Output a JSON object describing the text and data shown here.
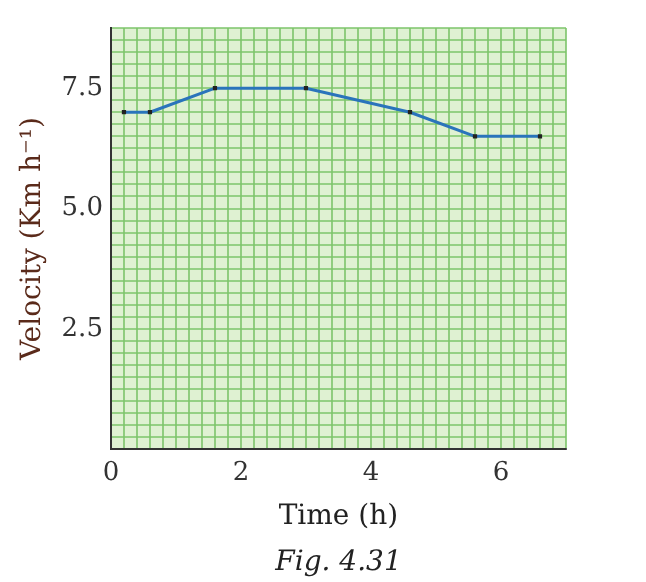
{
  "chart_data": {
    "type": "line",
    "xlabel": "Time (h)",
    "ylabel": "Velocity (Km h⁻¹)",
    "annotations": [
      "Fig. 4.31"
    ],
    "x": [
      0.2,
      0.6,
      1.6,
      3.0,
      4.6,
      5.6,
      6.6
    ],
    "series": [
      {
        "color": "#2a74bb",
        "values": [
          7,
          7,
          7.5,
          7.5,
          7,
          6.5,
          6.5
        ]
      }
    ],
    "xlim": [
      0,
      7
    ],
    "ylim": [
      0,
      8.75
    ],
    "xticks": [
      0,
      {
        "value": 0.2,
        "label": null
      },
      {
        "value": 0.4,
        "label": null
      },
      {
        "value": 0.6,
        "label": null
      },
      {
        "value": 0.8,
        "label": null
      },
      {
        "value": 1,
        "label": null
      },
      {
        "value": 1.2,
        "label": null
      },
      {
        "value": 1.4,
        "label": null
      },
      {
        "value": 1.6,
        "label": null
      },
      {
        "value": 1.8,
        "label": null
      },
      2,
      {
        "value": 2.2,
        "label": null
      },
      {
        "value": 2.4,
        "label": null
      },
      {
        "value": 2.6,
        "label": null
      },
      {
        "value": 2.8,
        "label": null
      },
      {
        "value": 3,
        "label": null
      },
      {
        "value": 3.2,
        "label": null
      },
      {
        "value": 3.4,
        "label": null
      },
      {
        "value": 3.6,
        "label": null
      },
      {
        "value": 3.8,
        "label": null
      },
      4,
      {
        "value": 4.2,
        "label": null
      },
      {
        "value": 4.4,
        "label": null
      },
      {
        "value": 4.6,
        "label": null
      },
      {
        "value": 4.8,
        "label": null
      },
      {
        "value": 5,
        "label": null
      },
      {
        "value": 5.2,
        "label": null
      },
      {
        "value": 5.4,
        "label": null
      },
      {
        "value": 5.6,
        "label": null
      },
      {
        "value": 5.8,
        "label": null
      },
      6,
      {
        "value": 6.2,
        "label": null
      },
      {
        "value": 6.4,
        "label": null
      },
      {
        "value": 6.6,
        "label": null
      },
      {
        "value": 6.8,
        "label": null
      },
      {
        "value": 7,
        "label": null
      }
    ],
    "yticks": [
      {
        "value": 0,
        "label": null
      },
      {
        "value": 0.25,
        "label": null
      },
      {
        "value": 0.5,
        "label": null
      },
      {
        "value": 0.75,
        "label": null
      },
      {
        "value": 1,
        "label": null
      },
      {
        "value": 1.25,
        "label": null
      },
      {
        "value": 1.5,
        "label": null
      },
      {
        "value": 1.75,
        "label": null
      },
      {
        "value": 2,
        "label": null
      },
      {
        "value": 2.25,
        "label": null
      },
      2.5,
      {
        "value": 2.75,
        "label": null
      },
      {
        "value": 3,
        "label": null
      },
      {
        "value": 3.25,
        "label": null
      },
      {
        "value": 3.5,
        "label": null
      },
      {
        "value": 3.75,
        "label": null
      },
      {
        "value": 4,
        "label": null
      },
      {
        "value": 4.25,
        "label": null
      },
      {
        "value": 4.5,
        "label": null
      },
      {
        "value": 4.75,
        "label": null
      },
      {
        "value": 5,
        "label": "5.0"
      },
      {
        "value": 5.25,
        "label": null
      },
      {
        "value": 5.5,
        "label": null
      },
      {
        "value": 5.75,
        "label": null
      },
      {
        "value": 6,
        "label": null
      },
      {
        "value": 6.25,
        "label": null
      },
      {
        "value": 6.5,
        "label": null
      },
      {
        "value": 6.75,
        "label": null
      },
      {
        "value": 7,
        "label": null
      },
      {
        "value": 7.25,
        "label": null
      },
      7.5,
      {
        "value": 7.75,
        "label": null
      },
      {
        "value": 8,
        "label": null
      },
      {
        "value": 8.25,
        "label": null
      },
      {
        "value": 8.5,
        "label": null
      },
      {
        "value": 8.75,
        "label": null
      }
    ],
    "grid": true,
    "marker": "square",
    "line_style": "solid",
    "legend": false
  }
}
